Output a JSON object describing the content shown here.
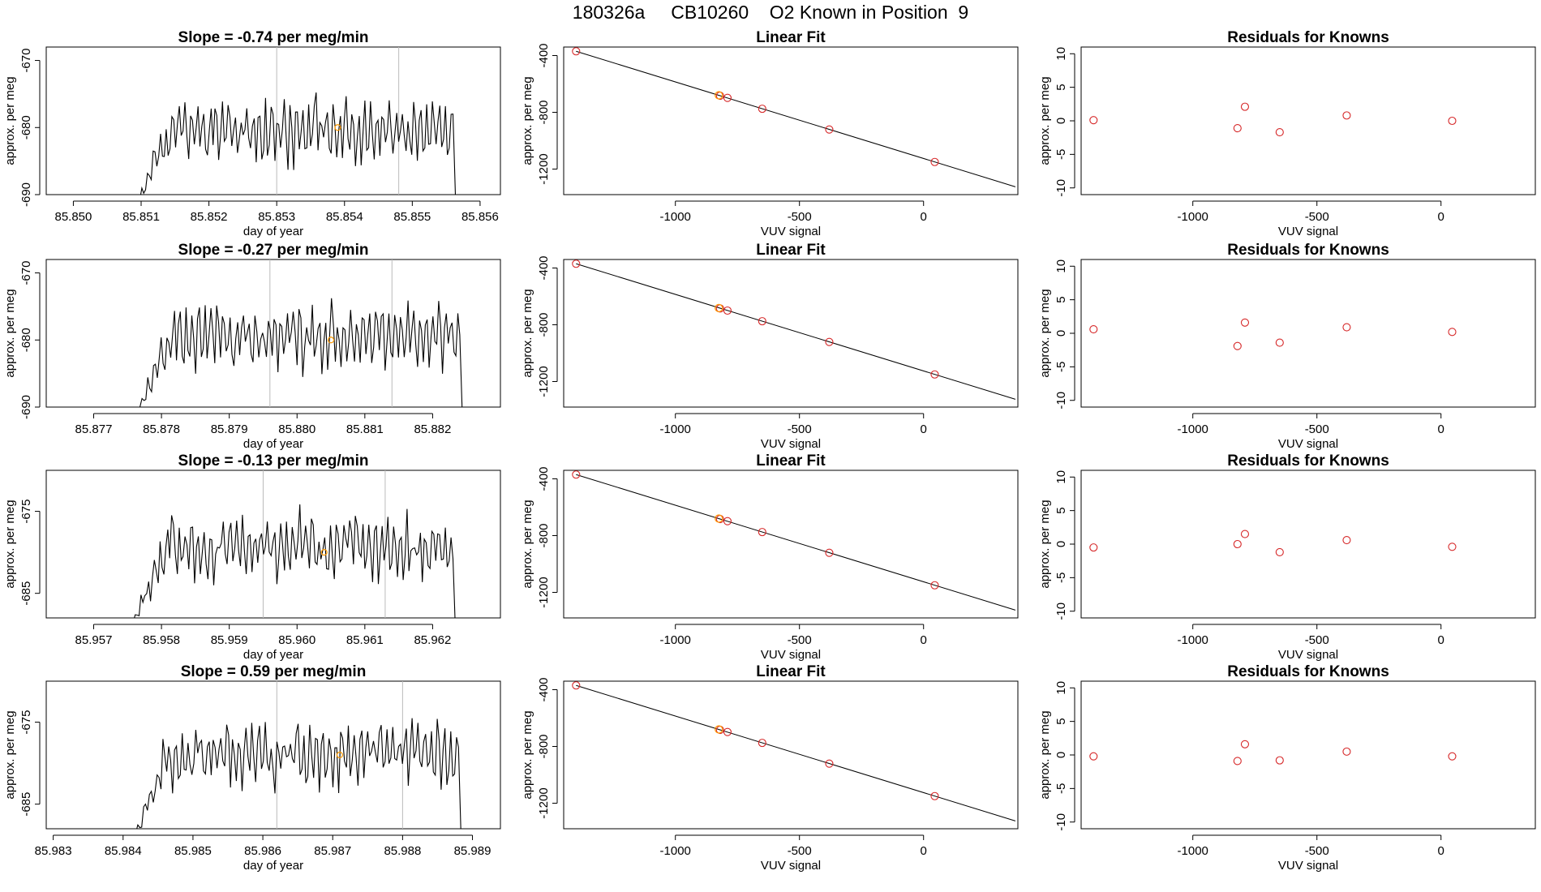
{
  "page": {
    "title": "180326a     CB10260    O2 Known in Position  9"
  },
  "colors": {
    "trace": "#000000",
    "known": "#d62728",
    "highlight": "#ff9900",
    "marker_line": "#bbbbbb",
    "fit_line": "#000000"
  },
  "chart_data": [
    {
      "type": "line",
      "row": 0,
      "col": 0,
      "title": "Slope =  -0.74  per meg/min",
      "xlabel": "day of year",
      "ylabel": "approx. per meg",
      "xlim": [
        85.8496,
        85.8563
      ],
      "ylim": [
        -690,
        -668
      ],
      "xticks": [
        85.85,
        85.851,
        85.852,
        85.853,
        85.854,
        85.855,
        85.856
      ],
      "xtick_labels": [
        "85.850",
        "85.851",
        "85.852",
        "85.853",
        "85.854",
        "85.855",
        "85.856"
      ],
      "yticks": [
        -690,
        -680,
        -670
      ],
      "ytick_labels": [
        "-690",
        "-680",
        "-670"
      ],
      "series": [
        {
          "x_start": 85.8509,
          "x_end": 85.8556,
          "base": -680.5,
          "amplitude": 4.5,
          "seed": 11
        }
      ],
      "markers_x": [
        85.853,
        85.8548
      ],
      "highlight_point": {
        "x": 85.8539,
        "y": -680
      }
    },
    {
      "type": "scatter",
      "row": 0,
      "col": 1,
      "title": "Linear Fit",
      "xlabel": "VUV signal",
      "ylabel": "approx. per meg",
      "xlim": [
        -1450,
        380
      ],
      "ylim": [
        -1380,
        -340
      ],
      "xticks": [
        -1000,
        -500,
        0
      ],
      "xtick_labels": [
        "-1000",
        "-500",
        "0"
      ],
      "yticks": [
        -400,
        -800,
        -1200
      ],
      "ytick_labels": [
        "-400",
        "-800",
        "-1200"
      ],
      "points": [
        {
          "x": -1400,
          "y": -370
        },
        {
          "x": -820,
          "y": -683
        },
        {
          "x": -790,
          "y": -698
        },
        {
          "x": -650,
          "y": -775
        },
        {
          "x": -380,
          "y": -921
        },
        {
          "x": 45,
          "y": -1150
        }
      ],
      "highlight_point": {
        "x": -825,
        "y": -680
      },
      "fit": {
        "x": [
          -1400,
          370
        ],
        "y": [
          -370,
          -1325
        ]
      }
    },
    {
      "type": "scatter",
      "row": 0,
      "col": 2,
      "title": "Residuals for Knowns",
      "xlabel": "VUV signal",
      "ylabel": "approx. per meg",
      "xlim": [
        -1450,
        380
      ],
      "ylim": [
        -11,
        11
      ],
      "xticks": [
        -1000,
        -500,
        0
      ],
      "xtick_labels": [
        "-1000",
        "-500",
        "0"
      ],
      "yticks": [
        -10,
        -5,
        0,
        5,
        10
      ],
      "ytick_labels": [
        "-10",
        "-5",
        "0",
        "5",
        "10"
      ],
      "points": [
        {
          "x": -1400,
          "y": 0.1
        },
        {
          "x": -820,
          "y": -1.1
        },
        {
          "x": -790,
          "y": 2.1
        },
        {
          "x": -650,
          "y": -1.7
        },
        {
          "x": -380,
          "y": 0.8
        },
        {
          "x": 45,
          "y": 0.0
        }
      ]
    },
    {
      "type": "line",
      "row": 1,
      "col": 0,
      "title": "Slope =  -0.27  per meg/min",
      "xlabel": "day of year",
      "ylabel": "approx. per meg",
      "xlim": [
        85.8763,
        85.883
      ],
      "ylim": [
        -690,
        -668
      ],
      "xticks": [
        85.877,
        85.878,
        85.879,
        85.88,
        85.881,
        85.882
      ],
      "xtick_labels": [
        "85.877",
        "85.878",
        "85.879",
        "85.880",
        "85.881",
        "85.882"
      ],
      "yticks": [
        -690,
        -680,
        -670
      ],
      "ytick_labels": [
        "-690",
        "-680",
        "-670"
      ],
      "series": [
        {
          "x_start": 85.8776,
          "x_end": 85.8824,
          "base": -679.5,
          "amplitude": 4.5,
          "seed": 23
        }
      ],
      "markers_x": [
        85.8796,
        85.8814
      ],
      "highlight_point": {
        "x": 85.8805,
        "y": -680
      }
    },
    {
      "type": "scatter",
      "row": 1,
      "col": 1,
      "title": "Linear Fit",
      "xlabel": "VUV signal",
      "ylabel": "approx. per meg",
      "xlim": [
        -1450,
        380
      ],
      "ylim": [
        -1380,
        -340
      ],
      "xticks": [
        -1000,
        -500,
        0
      ],
      "xtick_labels": [
        "-1000",
        "-500",
        "0"
      ],
      "yticks": [
        -400,
        -800,
        -1200
      ],
      "ytick_labels": [
        "-400",
        "-800",
        "-1200"
      ],
      "points": [
        {
          "x": -1400,
          "y": -370
        },
        {
          "x": -820,
          "y": -685
        },
        {
          "x": -790,
          "y": -700
        },
        {
          "x": -650,
          "y": -775
        },
        {
          "x": -380,
          "y": -921
        },
        {
          "x": 45,
          "y": -1150
        }
      ],
      "highlight_point": {
        "x": -825,
        "y": -682
      },
      "fit": {
        "x": [
          -1400,
          370
        ],
        "y": [
          -370,
          -1325
        ]
      }
    },
    {
      "type": "scatter",
      "row": 1,
      "col": 2,
      "title": "Residuals for Knowns",
      "xlabel": "VUV signal",
      "ylabel": "approx. per meg",
      "xlim": [
        -1450,
        380
      ],
      "ylim": [
        -11,
        11
      ],
      "xticks": [
        -1000,
        -500,
        0
      ],
      "xtick_labels": [
        "-1000",
        "-500",
        "0"
      ],
      "yticks": [
        -10,
        -5,
        0,
        5,
        10
      ],
      "ytick_labels": [
        "-10",
        "-5",
        "0",
        "5",
        "10"
      ],
      "points": [
        {
          "x": -1400,
          "y": 0.6
        },
        {
          "x": -820,
          "y": -1.9
        },
        {
          "x": -790,
          "y": 1.6
        },
        {
          "x": -650,
          "y": -1.4
        },
        {
          "x": -380,
          "y": 0.9
        },
        {
          "x": 45,
          "y": 0.2
        }
      ]
    },
    {
      "type": "line",
      "row": 2,
      "col": 0,
      "title": "Slope =  -0.13  per meg/min",
      "xlabel": "day of year",
      "ylabel": "approx. per meg",
      "xlim": [
        85.9563,
        85.963
      ],
      "ylim": [
        -688,
        -670
      ],
      "xticks": [
        85.957,
        85.958,
        85.959,
        85.96,
        85.961,
        85.962
      ],
      "xtick_labels": [
        "85.957",
        "85.958",
        "85.959",
        "85.960",
        "85.961",
        "85.962"
      ],
      "yticks": [
        -685,
        -675
      ],
      "ytick_labels": [
        "-685",
        "-675"
      ],
      "series": [
        {
          "x_start": 85.9575,
          "x_end": 85.9623,
          "base": -679.5,
          "amplitude": 3.5,
          "seed": 37
        }
      ],
      "markers_x": [
        85.9595,
        85.9613
      ],
      "highlight_point": {
        "x": 85.9604,
        "y": -680
      }
    },
    {
      "type": "scatter",
      "row": 2,
      "col": 1,
      "title": "Linear Fit",
      "xlabel": "VUV signal",
      "ylabel": "approx. per meg",
      "xlim": [
        -1450,
        380
      ],
      "ylim": [
        -1380,
        -340
      ],
      "xticks": [
        -1000,
        -500,
        0
      ],
      "xtick_labels": [
        "-1000",
        "-500",
        "0"
      ],
      "yticks": [
        -400,
        -800,
        -1200
      ],
      "ytick_labels": [
        "-400",
        "-800",
        "-1200"
      ],
      "points": [
        {
          "x": -1400,
          "y": -370
        },
        {
          "x": -820,
          "y": -683
        },
        {
          "x": -790,
          "y": -698
        },
        {
          "x": -650,
          "y": -775
        },
        {
          "x": -380,
          "y": -921
        },
        {
          "x": 45,
          "y": -1150
        }
      ],
      "highlight_point": {
        "x": -825,
        "y": -680
      },
      "fit": {
        "x": [
          -1400,
          370
        ],
        "y": [
          -370,
          -1325
        ]
      }
    },
    {
      "type": "scatter",
      "row": 2,
      "col": 2,
      "title": "Residuals for Knowns",
      "xlabel": "VUV signal",
      "ylabel": "approx. per meg",
      "xlim": [
        -1450,
        380
      ],
      "ylim": [
        -11,
        11
      ],
      "xticks": [
        -1000,
        -500,
        0
      ],
      "xtick_labels": [
        "-1000",
        "-500",
        "0"
      ],
      "yticks": [
        -10,
        -5,
        0,
        5,
        10
      ],
      "ytick_labels": [
        "-10",
        "-5",
        "0",
        "5",
        "10"
      ],
      "points": [
        {
          "x": -1400,
          "y": -0.5
        },
        {
          "x": -820,
          "y": 0.0
        },
        {
          "x": -790,
          "y": 1.5
        },
        {
          "x": -650,
          "y": -1.2
        },
        {
          "x": -380,
          "y": 0.6
        },
        {
          "x": 45,
          "y": -0.4
        }
      ]
    },
    {
      "type": "line",
      "row": 3,
      "col": 0,
      "title": "Slope =  0.59  per meg/min",
      "xlabel": "day of year",
      "ylabel": "approx. per meg",
      "xlim": [
        85.9829,
        85.9894
      ],
      "ylim": [
        -688,
        -670
      ],
      "xticks": [
        85.983,
        85.984,
        85.985,
        85.986,
        85.987,
        85.988,
        85.989
      ],
      "xtick_labels": [
        "85.983",
        "85.984",
        "85.985",
        "85.986",
        "85.987",
        "85.988",
        "85.989"
      ],
      "yticks": [
        -685,
        -675
      ],
      "ytick_labels": [
        "-685",
        "-675"
      ],
      "series": [
        {
          "x_start": 85.9841,
          "x_end": 85.9888,
          "base": -679.0,
          "amplitude": 3.5,
          "seed": 53
        }
      ],
      "markers_x": [
        85.9862,
        85.988
      ],
      "highlight_point": {
        "x": 85.9871,
        "y": -679
      }
    },
    {
      "type": "scatter",
      "row": 3,
      "col": 1,
      "title": "Linear Fit",
      "xlabel": "VUV signal",
      "ylabel": "approx. per meg",
      "xlim": [
        -1450,
        380
      ],
      "ylim": [
        -1380,
        -340
      ],
      "xticks": [
        -1000,
        -500,
        0
      ],
      "xtick_labels": [
        "-1000",
        "-500",
        "0"
      ],
      "yticks": [
        -400,
        -800,
        -1200
      ],
      "ytick_labels": [
        "-400",
        "-800",
        "-1200"
      ],
      "points": [
        {
          "x": -1400,
          "y": -370
        },
        {
          "x": -820,
          "y": -683
        },
        {
          "x": -790,
          "y": -698
        },
        {
          "x": -650,
          "y": -775
        },
        {
          "x": -380,
          "y": -921
        },
        {
          "x": 45,
          "y": -1150
        }
      ],
      "highlight_point": {
        "x": -825,
        "y": -680
      },
      "fit": {
        "x": [
          -1400,
          370
        ],
        "y": [
          -370,
          -1325
        ]
      }
    },
    {
      "type": "scatter",
      "row": 3,
      "col": 2,
      "title": "Residuals for Knowns",
      "xlabel": "VUV signal",
      "ylabel": "approx. per meg",
      "xlim": [
        -1450,
        380
      ],
      "ylim": [
        -11,
        11
      ],
      "xticks": [
        -1000,
        -500,
        0
      ],
      "xtick_labels": [
        "-1000",
        "-500",
        "0"
      ],
      "yticks": [
        -10,
        -5,
        0,
        5,
        10
      ],
      "ytick_labels": [
        "-10",
        "-5",
        "0",
        "5",
        "10"
      ],
      "points": [
        {
          "x": -1400,
          "y": -0.2
        },
        {
          "x": -820,
          "y": -0.9
        },
        {
          "x": -790,
          "y": 1.6
        },
        {
          "x": -650,
          "y": -0.8
        },
        {
          "x": -380,
          "y": 0.5
        },
        {
          "x": 45,
          "y": -0.2
        }
      ]
    }
  ]
}
